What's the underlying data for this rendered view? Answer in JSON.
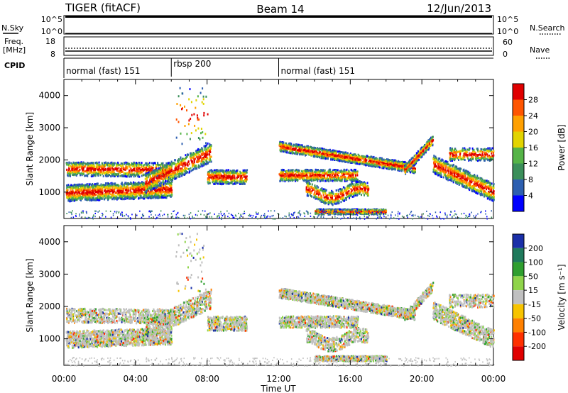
{
  "header": {
    "title": "TIGER (fitACF)",
    "beam": "Beam 14",
    "date": "12/Jun/2013"
  },
  "top_panels": {
    "nsky_label": "N.Sky",
    "nsearch_label": "N.Search",
    "freq_label_line1": "Freq.",
    "freq_label_line2": "[MHz]",
    "nave_label": "Nave",
    "cpid_label": "CPID",
    "nsky_ticks": [
      "10^5",
      "10^0"
    ],
    "nsearch_ticks": [
      "10^5",
      "10^0"
    ],
    "freq_ticks": [
      "18",
      "8"
    ],
    "nave_ticks": [
      "60",
      "0"
    ]
  },
  "cpid_segments": [
    {
      "label": "normal (fast) 151",
      "start_hour": 0
    },
    {
      "label": "rbsp 200",
      "start_hour": 6
    },
    {
      "label": "normal (fast) 151",
      "start_hour": 12
    }
  ],
  "chart_data": [
    {
      "type": "heatmap",
      "ylabel": "Slant Range [km]",
      "xlabel": "Time UT",
      "xlim_hours": [
        0,
        24
      ],
      "ylim": [
        180,
        4500
      ],
      "y_ticks": [
        "1000",
        "2000",
        "3000",
        "4000"
      ],
      "x_ticks": [
        "00:00",
        "04:00",
        "08:00",
        "12:00",
        "16:00",
        "20:00",
        "00:00"
      ],
      "colorbar": {
        "label": "Power [dB]",
        "ticks": [
          "4",
          "8",
          "12",
          "16",
          "20",
          "24",
          "28"
        ],
        "colors": [
          "#0000ff",
          "#2d5fb0",
          "#3b8f5a",
          "#55b447",
          "#e2d400",
          "#ffa000",
          "#ff5500",
          "#e00000"
        ]
      }
    },
    {
      "type": "heatmap",
      "ylabel": "Slant Range [km]",
      "xlabel": "Time UT",
      "xlim_hours": [
        0,
        24
      ],
      "ylim": [
        180,
        4500
      ],
      "y_ticks": [
        "1000",
        "2000",
        "3000",
        "4000"
      ],
      "x_ticks": [
        "00:00",
        "04:00",
        "08:00",
        "12:00",
        "16:00",
        "20:00",
        "00:00"
      ],
      "colorbar": {
        "label": "Velocity [m s⁻¹]",
        "ticks": [
          "200",
          "100",
          "50",
          "15",
          "-15",
          "-50",
          "-100",
          "-200"
        ],
        "colors": [
          "#1a2fa8",
          "#1f7a5c",
          "#2f9f2f",
          "#8fd44a",
          "#c0c0c0",
          "#f7c400",
          "#ff8000",
          "#ff3000",
          "#e00000"
        ]
      }
    }
  ]
}
